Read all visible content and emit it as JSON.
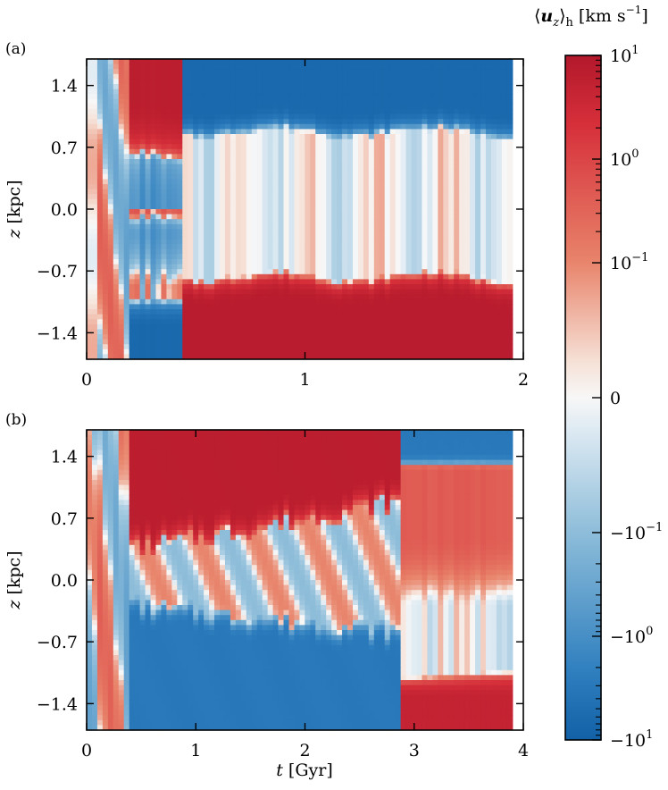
{
  "chart_data": [
    {
      "type": "heatmap",
      "panel_label": "(a)",
      "xlabel": "",
      "ylabel": "z [kpc]",
      "xlim": [
        0,
        2
      ],
      "ylim": [
        -1.7,
        1.7
      ],
      "xticks": [
        "0",
        "1",
        "2"
      ],
      "yticks": [
        "1.4",
        "0.7",
        "0.0",
        "−0.7",
        "−1.4"
      ],
      "ytick_values": [
        1.4,
        0.7,
        0.0,
        -0.7,
        -1.4
      ],
      "xtick_values": [
        0,
        1,
        2
      ],
      "regimes": [
        {
          "t_range": [
            0.0,
            0.05
          ],
          "upper_uz": 0.05,
          "lower_uz": -0.05
        },
        {
          "t_range": [
            0.05,
            0.2
          ],
          "upper_uz": 0.3,
          "lower_uz": -0.3
        },
        {
          "t_range": [
            0.2,
            0.45
          ],
          "upper_uz": 5,
          "lower_uz": -5,
          "mid_uz": -0.5
        },
        {
          "t_range": [
            0.45,
            1.95
          ],
          "upper_uz": -5,
          "mid_uz": 0.02,
          "lower_uz": 6
        }
      ]
    },
    {
      "type": "heatmap",
      "panel_label": "(b)",
      "xlabel": "t [Gyr]",
      "ylabel": "z [kpc]",
      "xlim": [
        0,
        4
      ],
      "ylim": [
        -1.7,
        1.7
      ],
      "xticks": [
        "0",
        "1",
        "2",
        "3",
        "4"
      ],
      "yticks": [
        "1.4",
        "0.7",
        "0.0",
        "−0.7",
        "−1.4"
      ],
      "ytick_values": [
        1.4,
        0.7,
        0.0,
        -0.7,
        -1.4
      ],
      "xtick_values": [
        0,
        1,
        2,
        3,
        4
      ],
      "regimes": [
        {
          "t_range": [
            0.0,
            0.4
          ],
          "upper_uz": 0.3,
          "lower_uz": -0.2
        },
        {
          "t_range": [
            0.4,
            2.9
          ],
          "upper_uz": 5,
          "mid_uz": 0.05,
          "lower_uz": -2
        },
        {
          "t_range": [
            2.9,
            3.9
          ],
          "upper_uz": -2,
          "mid_uz": 0.3,
          "lower_uz": 3
        }
      ]
    }
  ],
  "colorbar": {
    "title": "⟨u_z⟩_h [km s⁻¹]",
    "title_parts": {
      "open": "⟨",
      "var": "u",
      "sub": "z",
      "close": "⟩",
      "hsub": "h",
      "units": "[km s",
      "exp": "−1",
      "end": "]"
    },
    "scale": "symlog",
    "range": [
      -10,
      10
    ],
    "linthresh": 0.05,
    "tick_labels": [
      {
        "value": 10,
        "base": "10",
        "exp": "1",
        "sign": ""
      },
      {
        "value": 1,
        "base": "10",
        "exp": "0",
        "sign": ""
      },
      {
        "value": 0.1,
        "base": "10",
        "exp": "−1",
        "sign": ""
      },
      {
        "value": 0,
        "base": "0",
        "exp": "",
        "sign": ""
      },
      {
        "value": -0.1,
        "base": "10",
        "exp": "−1",
        "sign": "−"
      },
      {
        "value": -1,
        "base": "10",
        "exp": "0",
        "sign": "−"
      },
      {
        "value": -10,
        "base": "10",
        "exp": "1",
        "sign": "−"
      }
    ],
    "colors": {
      "positive": "#c8102e",
      "zero": "#f5f5f5",
      "negative": "#1f6fb0"
    }
  }
}
